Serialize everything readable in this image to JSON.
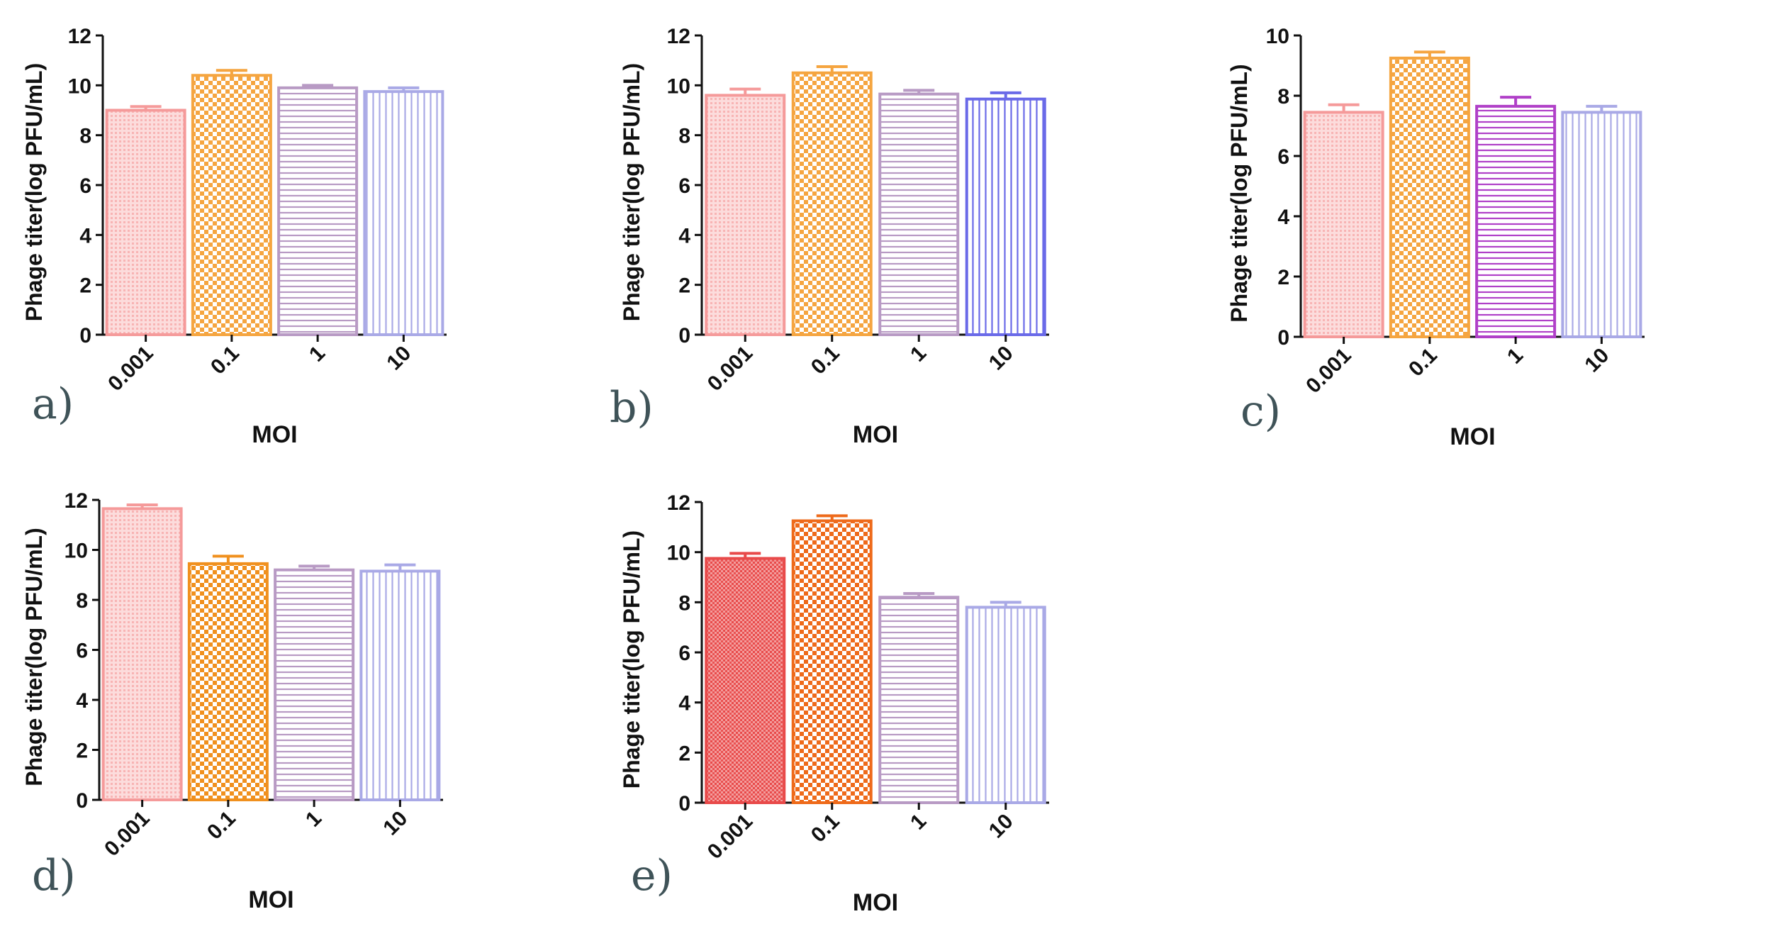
{
  "chart_data": [
    {
      "type": "bar",
      "panel_label": "a)",
      "categories": [
        "0.001",
        "0.1",
        "1",
        "10"
      ],
      "values": [
        9.0,
        10.4,
        9.9,
        9.75
      ],
      "errors": [
        0.15,
        0.2,
        0.1,
        0.15
      ],
      "xlabel": "MOI",
      "ylabel": "Phage titer(log PFU/mL)",
      "ylim": [
        0,
        12
      ],
      "yticks": [
        "0",
        "2",
        "4",
        "6",
        "8",
        "10",
        "12"
      ],
      "grid": false,
      "bar_colors": [
        "#f59a9a",
        "#f5a540",
        "#b89ac4",
        "#a9a9e6"
      ],
      "bar_patterns": [
        "dots",
        "checker",
        "hlines",
        "vlines"
      ]
    },
    {
      "type": "bar",
      "panel_label": "b)",
      "categories": [
        "0.001",
        "0.1",
        "1",
        "10"
      ],
      "values": [
        9.6,
        10.5,
        9.65,
        9.45
      ],
      "errors": [
        0.25,
        0.25,
        0.15,
        0.25
      ],
      "xlabel": "MOI",
      "ylabel": "Phage titer(log PFU/mL)",
      "ylim": [
        0,
        12
      ],
      "yticks": [
        "0",
        "2",
        "4",
        "6",
        "8",
        "10",
        "12"
      ],
      "grid": false,
      "bar_colors": [
        "#f59a9a",
        "#f5a540",
        "#b89ac4",
        "#6a6ae8"
      ],
      "bar_patterns": [
        "dots",
        "checker",
        "hlines",
        "vlines"
      ]
    },
    {
      "type": "bar",
      "panel_label": "c)",
      "categories": [
        "0.001",
        "0.1",
        "1",
        "10"
      ],
      "values": [
        7.45,
        9.25,
        7.65,
        7.45
      ],
      "errors": [
        0.25,
        0.2,
        0.3,
        0.2
      ],
      "xlabel": "MOI",
      "ylabel": "Phage titer(log PFU/mL)",
      "ylim": [
        0,
        10
      ],
      "yticks": [
        "0",
        "2",
        "4",
        "6",
        "8",
        "10"
      ],
      "grid": false,
      "bar_colors": [
        "#f59a9a",
        "#f5a540",
        "#b040c8",
        "#a9a9e6"
      ],
      "bar_patterns": [
        "dots",
        "checker",
        "hlines",
        "vlines"
      ]
    },
    {
      "type": "bar",
      "panel_label": "d)",
      "categories": [
        "0.001",
        "0.1",
        "1",
        "10"
      ],
      "values": [
        11.65,
        9.45,
        9.2,
        9.15
      ],
      "errors": [
        0.15,
        0.3,
        0.15,
        0.25
      ],
      "xlabel": "MOI",
      "ylabel": "Phage titer(log PFU/mL)",
      "ylim": [
        0,
        12
      ],
      "yticks": [
        "0",
        "2",
        "4",
        "6",
        "8",
        "10",
        "12"
      ],
      "grid": false,
      "bar_colors": [
        "#f59a9a",
        "#f0901e",
        "#b89ac4",
        "#a9a9e6"
      ],
      "bar_patterns": [
        "dots",
        "checker",
        "hlines",
        "vlines"
      ]
    },
    {
      "type": "bar",
      "panel_label": "e)",
      "categories": [
        "0.001",
        "0.1",
        "1",
        "10"
      ],
      "values": [
        9.75,
        11.25,
        8.2,
        7.8
      ],
      "errors": [
        0.2,
        0.2,
        0.15,
        0.2
      ],
      "xlabel": "MOI",
      "ylabel": "Phage titer(log PFU/mL)",
      "ylim": [
        0,
        12
      ],
      "yticks": [
        "0",
        "2",
        "4",
        "6",
        "8",
        "10",
        "12"
      ],
      "grid": false,
      "bar_colors": [
        "#e84a4a",
        "#ee6a1a",
        "#b89ac4",
        "#a9a9e6"
      ],
      "bar_patterns": [
        "dense-dots",
        "checker",
        "hlines",
        "vlines"
      ]
    }
  ]
}
